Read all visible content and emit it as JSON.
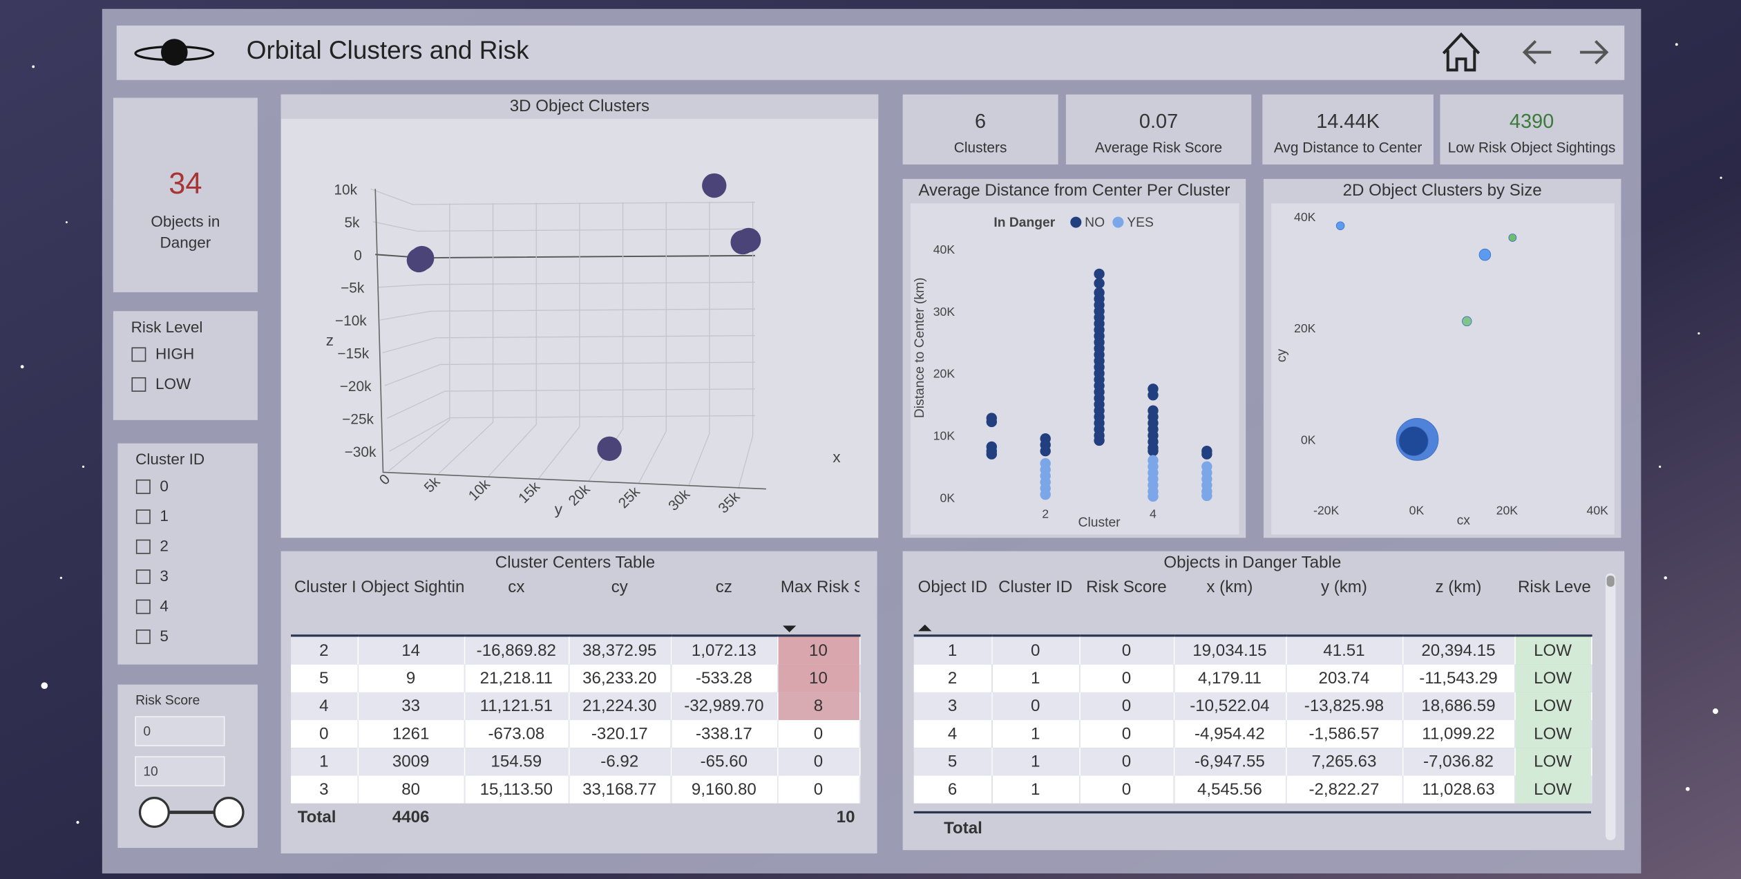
{
  "header": {
    "title": "Orbital Clusters and Risk"
  },
  "cards": [
    {
      "value": "34",
      "label": "Objects in Danger"
    },
    {
      "value": "6",
      "label": "Clusters"
    },
    {
      "value": "0.07",
      "label": "Average Risk Score"
    },
    {
      "value": "14.44K",
      "label": "Avg Distance to Center"
    },
    {
      "value": "4390",
      "label": "Low Risk Object Sightings"
    }
  ],
  "slicers": [
    {
      "title": "Risk Level",
      "options": [
        "HIGH",
        "LOW"
      ]
    },
    {
      "title": "Cluster ID",
      "options": [
        "0",
        "1",
        "2",
        "3",
        "4",
        "5"
      ]
    },
    {
      "title": "Risk Score",
      "inputs": [
        "0",
        "10"
      ]
    }
  ],
  "chart_data": [
    {
      "type": "scatter3d",
      "title": "3D Object Clusters",
      "x_label": "x",
      "y_label": "y",
      "z_label": "z",
      "color": "#4b4478",
      "x": [
        -673.08,
        154.59,
        -16869.82,
        15113.5,
        11121.51,
        21218.11
      ],
      "y": [
        -320.17,
        -6.92,
        38372.95,
        33168.77,
        21224.3,
        36233.2
      ],
      "z": [
        -338.17,
        -65.6,
        1072.13,
        9160.8,
        -32989.7,
        -533.28
      ],
      "yticks": [
        0,
        {
          "value": 5000,
          "label": "5k"
        },
        {
          "value": 10000,
          "label": "10k"
        },
        {
          "value": 15000,
          "label": "15k"
        },
        {
          "value": 20000,
          "label": "20k"
        },
        {
          "value": 25000,
          "label": "25k"
        },
        {
          "value": 30000,
          "label": "30k"
        },
        {
          "value": 35000,
          "label": "35k"
        }
      ],
      "zticks": [
        {
          "value": 10000,
          "label": "10k"
        },
        {
          "value": 5000,
          "label": "5k"
        },
        0,
        {
          "value": -5000,
          "label": "−5k"
        },
        {
          "value": -10000,
          "label": "−10k"
        },
        {
          "value": -15000,
          "label": "−15k"
        },
        {
          "value": -20000,
          "label": "−20k"
        },
        {
          "value": -25000,
          "label": "−25k"
        },
        {
          "value": -30000,
          "label": "−30k"
        }
      ]
    },
    {
      "type": "scatter",
      "title": "Average Distance from Center Per Cluster",
      "x_label": "Cluster",
      "y_label": "Distance to Center (km)",
      "legend_title": "In Danger",
      "xlim": [
        0.4,
        5.6
      ],
      "ylim": [
        -2000,
        42000
      ],
      "xticks": [
        2,
        4
      ],
      "yticks": [
        {
          "value": 0,
          "label": "0K"
        },
        {
          "value": 10000,
          "label": "10K"
        },
        {
          "value": 20000,
          "label": "20K"
        },
        {
          "value": 30000,
          "label": "30K"
        },
        {
          "value": 40000,
          "label": "40K"
        }
      ],
      "series": [
        {
          "name": "NO",
          "color": "#22407f",
          "x": [
            1,
            1,
            1,
            1,
            1,
            2,
            2,
            2,
            3,
            3,
            3,
            3,
            3,
            3,
            3,
            3,
            3,
            3,
            3,
            3,
            3,
            3,
            3,
            3,
            3,
            3,
            3,
            3,
            3,
            3,
            3,
            3,
            3,
            3,
            3,
            4,
            4,
            4,
            4,
            4,
            4,
            4,
            4,
            4,
            4,
            5,
            5
          ],
          "values": [
            12800,
            12200,
            8200,
            7500,
            7000,
            9500,
            8500,
            7500,
            36000,
            34500,
            33000,
            32000,
            31000,
            30000,
            29000,
            28000,
            27000,
            26000,
            25000,
            24000,
            23000,
            22000,
            21000,
            20000,
            19000,
            18000,
            17000,
            16000,
            15000,
            14000,
            13000,
            12000,
            11000,
            10000,
            9200,
            17500,
            16500,
            14000,
            13000,
            12000,
            11000,
            10000,
            9000,
            8000,
            7500,
            7500,
            7000
          ]
        },
        {
          "name": "YES",
          "color": "#7ba6e8",
          "x": [
            2,
            2,
            2,
            2,
            2,
            2,
            4,
            4,
            4,
            4,
            4,
            4,
            4,
            5,
            5,
            5,
            5,
            5,
            5
          ],
          "values": [
            5500,
            4500,
            3500,
            2500,
            1500,
            500,
            6000,
            5000,
            4000,
            3000,
            2000,
            1000,
            200,
            5000,
            4000,
            3000,
            2000,
            1000,
            300
          ]
        }
      ]
    },
    {
      "type": "bubble",
      "title": "2D Object Clusters by Size",
      "x_label": "cx",
      "y_label": "cy",
      "xlim": [
        -26000,
        44000
      ],
      "ylim": [
        -10500,
        42000
      ],
      "xticks": [
        {
          "value": -20000,
          "label": "-20K"
        },
        {
          "value": 0,
          "label": "0K"
        },
        {
          "value": 20000,
          "label": "20K"
        },
        {
          "value": 40000,
          "label": "40K"
        }
      ],
      "yticks": [
        {
          "value": 0,
          "label": "0K"
        },
        {
          "value": 20000,
          "label": "20K"
        },
        {
          "value": 40000,
          "label": "40K"
        }
      ],
      "x": [
        154.59,
        -673.08,
        -16869.82,
        15113.5,
        11121.51,
        21218.11
      ],
      "values": [
        -6.92,
        -320.17,
        38372.95,
        33168.77,
        21224.3,
        36233.2
      ],
      "sizes": [
        3009,
        1261,
        14,
        80,
        33,
        9
      ],
      "colors": [
        "#4f83d9",
        "#1f4a99",
        "#5b9bf0",
        "#5b9bf0",
        "#7fc48a",
        "#6dbf6d"
      ]
    }
  ],
  "cluster_table": {
    "title": "Cluster Centers Table",
    "columns": [
      "Cluster ID",
      "Object Sightings",
      "cx",
      "cy",
      "cz",
      "Max Risk Score"
    ],
    "rows": [
      [
        "2",
        "14",
        "-16,869.82",
        "38,372.95",
        "1,072.13",
        "10"
      ],
      [
        "5",
        "9",
        "21,218.11",
        "36,233.20",
        "-533.28",
        "10"
      ],
      [
        "4",
        "33",
        "11,121.51",
        "21,224.30",
        "-32,989.70",
        "8"
      ],
      [
        "0",
        "1261",
        "-673.08",
        "-320.17",
        "-338.17",
        "0"
      ],
      [
        "1",
        "3009",
        "154.59",
        "-6.92",
        "-65.60",
        "0"
      ],
      [
        "3",
        "80",
        "15,113.50",
        "33,168.77",
        "9,160.80",
        "0"
      ]
    ],
    "total": [
      "Total",
      "4406",
      "10"
    ]
  },
  "danger_table": {
    "title": "Objects in Danger Table",
    "columns": [
      "Object ID",
      "Cluster ID",
      "Risk Score",
      "x (km)",
      "y (km)",
      "z (km)",
      "Risk Level"
    ],
    "rows": [
      [
        "1",
        "0",
        "0",
        "19,034.15",
        "41.51",
        "20,394.15",
        "LOW"
      ],
      [
        "2",
        "1",
        "0",
        "4,179.11",
        "203.74",
        "-11,543.29",
        "LOW"
      ],
      [
        "3",
        "0",
        "0",
        "-10,522.04",
        "-13,825.98",
        "18,686.59",
        "LOW"
      ],
      [
        "4",
        "1",
        "0",
        "-4,954.42",
        "-1,586.57",
        "11,099.22",
        "LOW"
      ],
      [
        "5",
        "1",
        "0",
        "-6,947.55",
        "7,265.63",
        "-7,036.82",
        "LOW"
      ],
      [
        "6",
        "1",
        "0",
        "4,545.56",
        "-2,822.27",
        "11,028.63",
        "LOW"
      ]
    ],
    "total": "Total"
  }
}
